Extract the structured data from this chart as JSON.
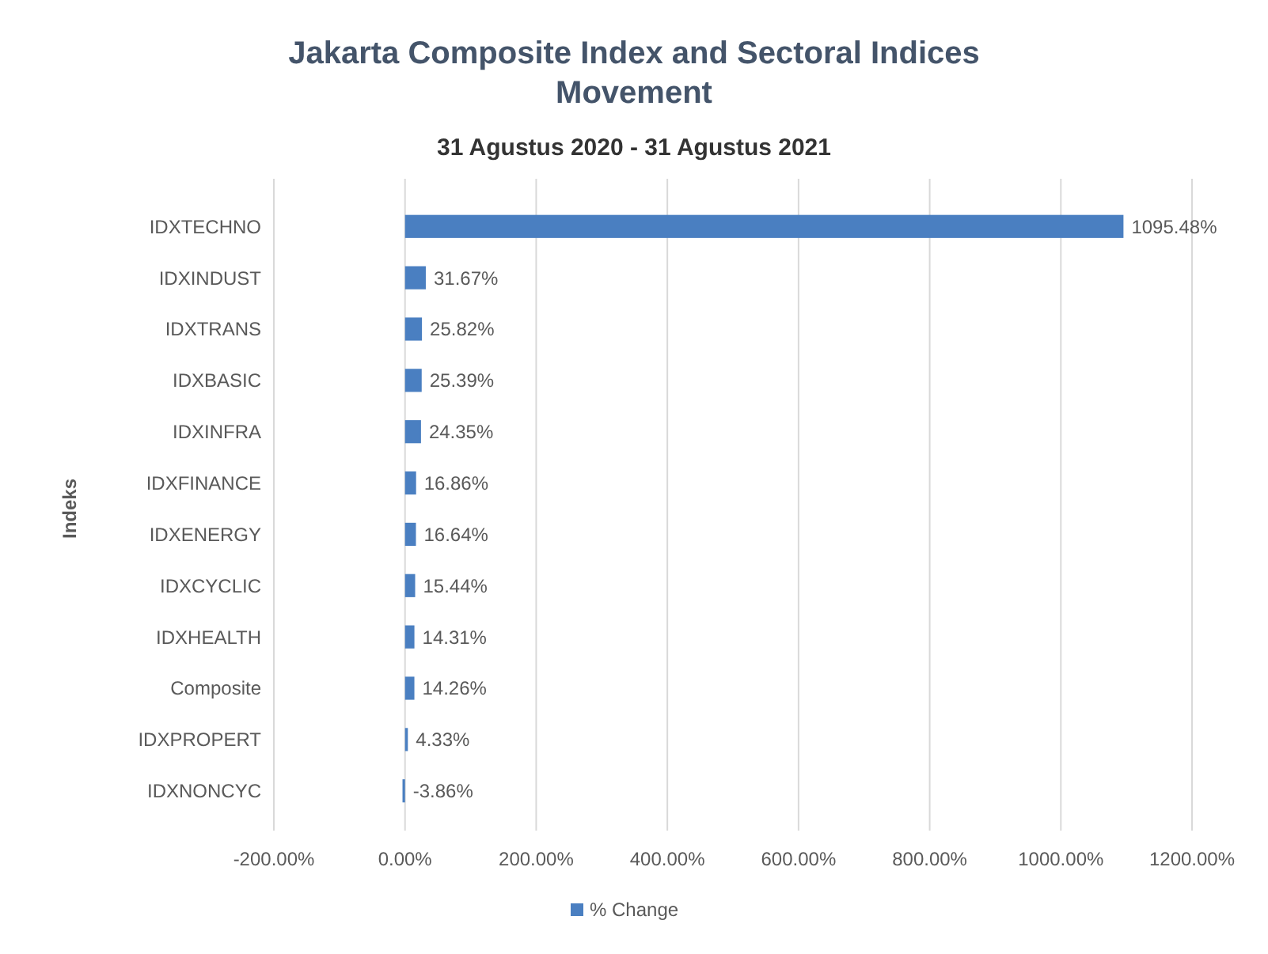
{
  "chart_data": {
    "type": "bar",
    "orientation": "horizontal",
    "title": "Jakarta Composite Index and Sectoral Indices Movement",
    "subtitle": "31 Agustus 2020 - 31 Agustus 2021",
    "ylabel": "Indeks",
    "categories": [
      "IDXTECHNO",
      "IDXINDUST",
      "IDXTRANS",
      "IDXBASIC",
      "IDXINFRA",
      "IDXFINANCE",
      "IDXENERGY",
      "IDXCYCLIC",
      "IDXHEALTH",
      "Composite",
      "IDXPROPERT",
      "IDXNONCYC"
    ],
    "series": [
      {
        "name": "% Change",
        "color": "#4a7fc1",
        "values": [
          1095.48,
          31.67,
          25.82,
          25.39,
          24.35,
          16.86,
          16.64,
          15.44,
          14.31,
          14.26,
          4.33,
          -3.86
        ],
        "value_labels": [
          "1095.48%",
          "31.67%",
          "25.82%",
          "25.39%",
          "24.35%",
          "16.86%",
          "16.64%",
          "15.44%",
          "14.31%",
          "14.26%",
          "4.33%",
          "-3.86%"
        ]
      }
    ],
    "xlim": [
      -200,
      1200
    ],
    "xticks": [
      {
        "value": -200,
        "label": "-200.00%"
      },
      {
        "value": 0,
        "label": "0.00%"
      },
      {
        "value": 200,
        "label": "200.00%"
      },
      {
        "value": 400,
        "label": "400.00%"
      },
      {
        "value": 600,
        "label": "600.00%"
      },
      {
        "value": 800,
        "label": "800.00%"
      },
      {
        "value": 1000,
        "label": "1000.00%"
      },
      {
        "value": 1200,
        "label": "1200.00%"
      }
    ],
    "grid": "x",
    "legend": "bottom"
  }
}
